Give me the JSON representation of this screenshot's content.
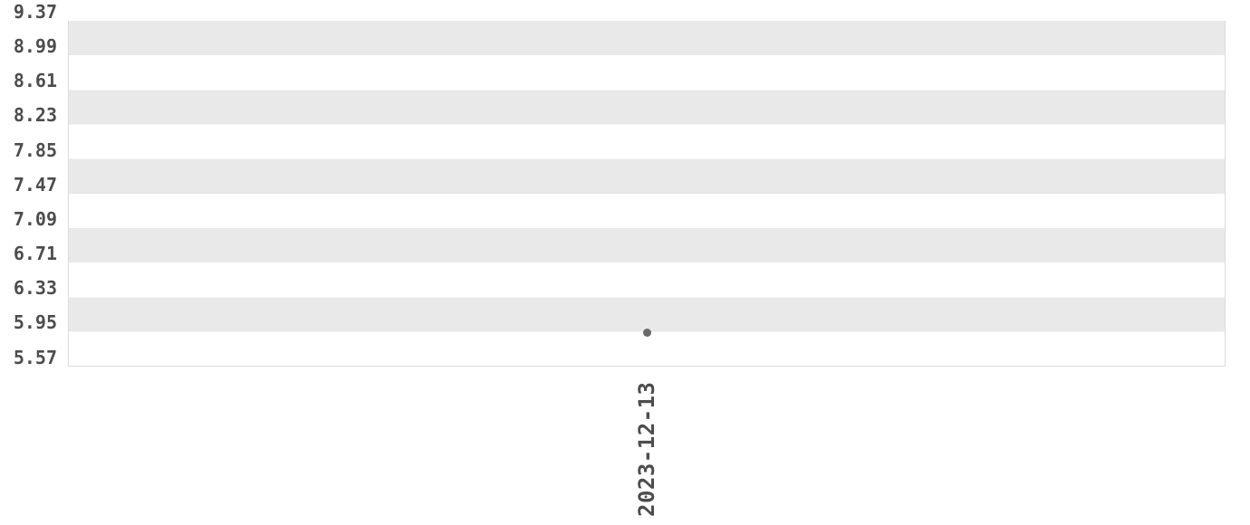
{
  "chart_data": {
    "type": "scatter",
    "title": "",
    "x": [
      "2023-12-13"
    ],
    "series": [
      {
        "name": "",
        "values": [
          5.94
        ]
      }
    ],
    "ytick_labels": [
      "9.37",
      "8.99",
      "8.61",
      "8.23",
      "7.85",
      "7.47",
      "7.09",
      "6.71",
      "6.33",
      "5.95",
      "5.57"
    ],
    "yticks": [
      9.37,
      8.99,
      8.61,
      8.23,
      7.85,
      7.47,
      7.09,
      6.71,
      6.33,
      5.95,
      5.57
    ],
    "ylim": [
      5.57,
      9.37
    ],
    "xlabel": "",
    "ylabel": "",
    "grid": "alternating-horizontal-bands",
    "legend": "none",
    "colors": {
      "band": "#e9e9e9",
      "plot_border": "#dcdcdc",
      "tick_text": "#4d4d4d",
      "point": "#6a6a6a",
      "background": "#ffffff"
    }
  }
}
